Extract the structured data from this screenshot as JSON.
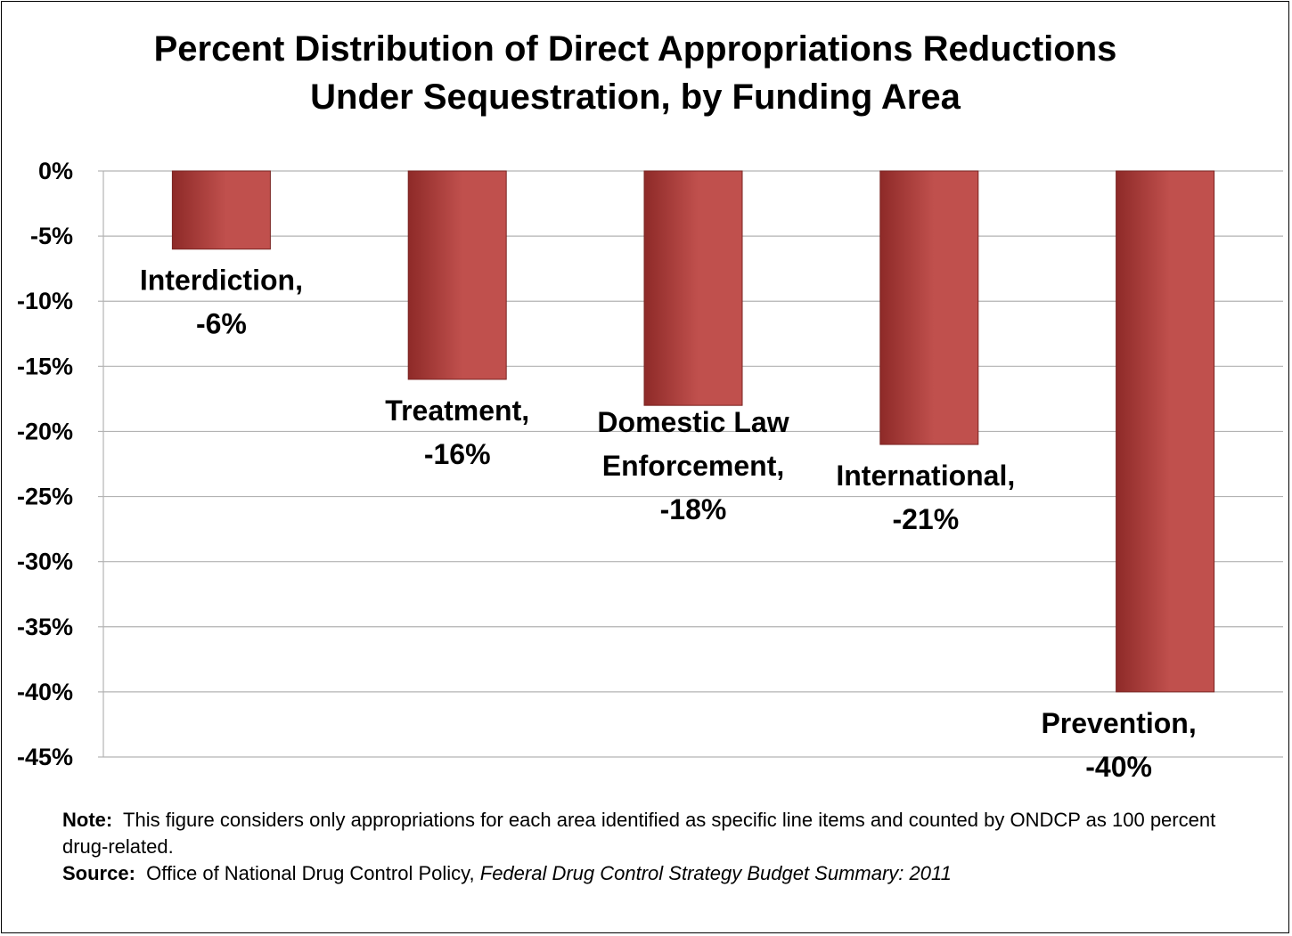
{
  "chart_data": {
    "type": "bar",
    "title": "Percent Distribution of Direct Appropriations Reductions Under Sequestration, by Funding Area",
    "title_lines": [
      "Percent Distribution of Direct Appropriations Reductions",
      "Under Sequestration, by Funding Area"
    ],
    "categories": [
      "Interdiction",
      "Treatment",
      "Domestic Law Enforcement",
      "International",
      "Prevention"
    ],
    "values": [
      -6,
      -16,
      -18,
      -21,
      -40
    ],
    "data_labels": [
      [
        "Interdiction,",
        "-6%"
      ],
      [
        "Treatment,",
        "-16%"
      ],
      [
        "Domestic Law",
        "Enforcement,",
        "-18%"
      ],
      [
        "International,",
        "-21%"
      ],
      [
        "Prevention,",
        "-40%"
      ]
    ],
    "ylim": [
      -45,
      0
    ],
    "yticks": [
      0,
      -5,
      -10,
      -15,
      -20,
      -25,
      -30,
      -35,
      -40,
      -45
    ],
    "ytick_labels": [
      "0%",
      "-5%",
      "-10%",
      "-15%",
      "-20%",
      "-25%",
      "-30%",
      "-35%",
      "-40%",
      "-45%"
    ],
    "xlabel": "",
    "ylabel": "",
    "grid": true,
    "legend": "none",
    "bar_color": "#c0504d",
    "bar_color_dark": "#8e2a28"
  },
  "footnote": {
    "note_label": "Note:",
    "note_text": "This figure considers only appropriations for each area identified as specific line items and counted by ONDCP as 100 percent drug-related.",
    "source_label": "Source:",
    "source_text": "Office of National Drug Control Policy,",
    "source_title": "Federal Drug Control Strategy Budget Summary:  2011"
  }
}
